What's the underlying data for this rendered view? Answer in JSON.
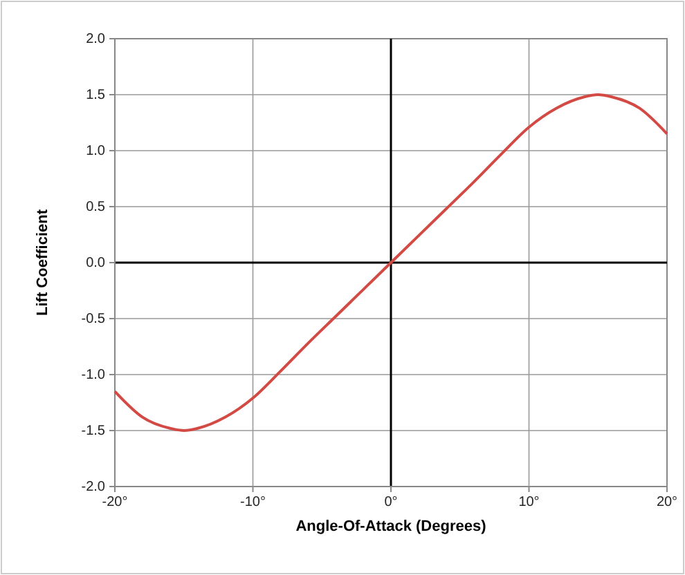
{
  "chart_data": {
    "type": "line",
    "xlabel": "Angle-Of-Attack (Degrees)",
    "ylabel": "Lift Coefficient",
    "x": [
      -20,
      -18,
      -16,
      -15,
      -14,
      -12,
      -10,
      -8,
      -6,
      -4,
      -2,
      0,
      2,
      4,
      6,
      8,
      10,
      12,
      14,
      15,
      16,
      18,
      20
    ],
    "series": [
      {
        "color": "#d24a43",
        "values": [
          -1.15,
          -1.38,
          -1.48,
          -1.5,
          -1.48,
          -1.38,
          -1.21,
          -0.97,
          -0.72,
          -0.48,
          -0.24,
          0,
          0.24,
          0.48,
          0.72,
          0.97,
          1.21,
          1.38,
          1.48,
          1.5,
          1.48,
          1.38,
          1.15
        ]
      }
    ],
    "xlim": [
      -20,
      20
    ],
    "xticks": [
      {
        "value": -20,
        "label": "-20°"
      },
      {
        "value": -10,
        "label": "-10°"
      },
      {
        "value": 0,
        "label": "0°"
      },
      {
        "value": 10,
        "label": "10°"
      },
      {
        "value": 20,
        "label": "20°"
      }
    ],
    "ylim": [
      -2,
      2
    ],
    "yticks": [
      {
        "value": -2,
        "label": "-2.0"
      },
      {
        "value": -1.5,
        "label": "-1.5"
      },
      {
        "value": -1,
        "label": "-1.0"
      },
      {
        "value": -0.5,
        "label": "-0.5"
      },
      {
        "value": 0,
        "label": "0.0"
      },
      {
        "value": 0.5,
        "label": "0.5"
      },
      {
        "value": 1,
        "label": "1.0"
      },
      {
        "value": 1.5,
        "label": "1.5"
      },
      {
        "value": 2,
        "label": "2.0"
      }
    ],
    "grid": true,
    "marker": "none",
    "line_style": "solid"
  }
}
